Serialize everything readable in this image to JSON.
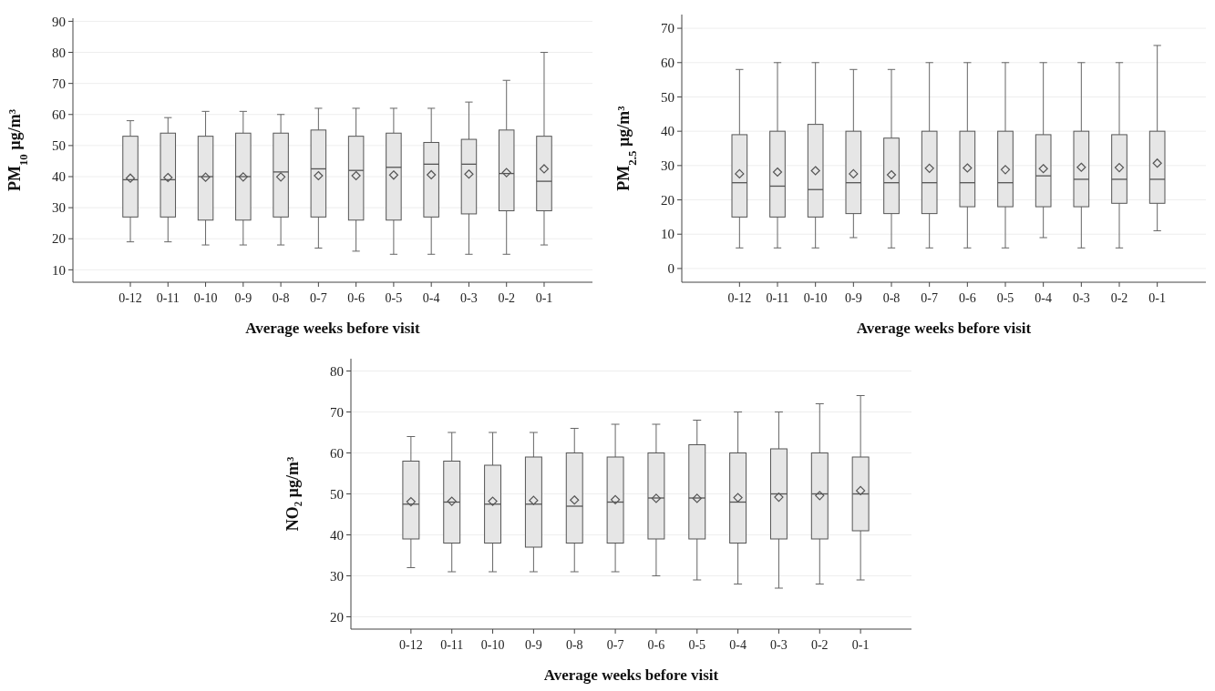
{
  "chart_data": [
    {
      "type": "box",
      "ylabel": "PM$_{10}$ µg/m³",
      "xlabel": "Average weeks before visit",
      "color": "#e6e6e6",
      "marker": "diamond",
      "grid": "y",
      "ylim": [
        6,
        91
      ],
      "yticks": [
        10,
        20,
        30,
        40,
        50,
        60,
        70,
        80,
        90
      ],
      "categories": [
        "0-12",
        "0-11",
        "0-10",
        "0-9",
        "0-8",
        "0-7",
        "0-6",
        "0-5",
        "0-4",
        "0-3",
        "0-2",
        "0-1"
      ],
      "boxes": [
        {
          "low": 19,
          "q1": 27,
          "median": 39,
          "q3": 53,
          "high": 58,
          "mean": 39.5
        },
        {
          "low": 19,
          "q1": 27,
          "median": 39,
          "q3": 54,
          "high": 59,
          "mean": 39.7
        },
        {
          "low": 18,
          "q1": 26,
          "median": 40,
          "q3": 53,
          "high": 61,
          "mean": 39.8
        },
        {
          "low": 18,
          "q1": 26,
          "median": 40,
          "q3": 54,
          "high": 61,
          "mean": 39.9
        },
        {
          "low": 18,
          "q1": 27,
          "median": 41.5,
          "q3": 54,
          "high": 60,
          "mean": 39.9
        },
        {
          "low": 17,
          "q1": 27,
          "median": 42.5,
          "q3": 55,
          "high": 62,
          "mean": 40.3
        },
        {
          "low": 16,
          "q1": 26,
          "median": 42,
          "q3": 53,
          "high": 62,
          "mean": 40.3
        },
        {
          "low": 15,
          "q1": 26,
          "median": 43,
          "q3": 54,
          "high": 62,
          "mean": 40.5
        },
        {
          "low": 15,
          "q1": 27,
          "median": 44,
          "q3": 51,
          "high": 62,
          "mean": 40.6
        },
        {
          "low": 15,
          "q1": 28,
          "median": 44,
          "q3": 52,
          "high": 64,
          "mean": 40.8
        },
        {
          "low": 15,
          "q1": 29,
          "median": 41,
          "q3": 55,
          "high": 71,
          "mean": 41.3
        },
        {
          "low": 18,
          "q1": 29,
          "median": 38.5,
          "q3": 53,
          "high": 80,
          "mean": 42.5
        }
      ]
    },
    {
      "type": "box",
      "ylabel": "PM$_{2.5}$ µg/m³",
      "xlabel": "Average weeks before visit",
      "color": "#e6e6e6",
      "marker": "diamond",
      "grid": "y",
      "ylim": [
        -4,
        74
      ],
      "yticks": [
        0,
        10,
        20,
        30,
        40,
        50,
        60,
        70
      ],
      "categories": [
        "0-12",
        "0-11",
        "0-10",
        "0-9",
        "0-8",
        "0-7",
        "0-6",
        "0-5",
        "0-4",
        "0-3",
        "0-2",
        "0-1"
      ],
      "boxes": [
        {
          "low": 6,
          "q1": 15,
          "median": 25,
          "q3": 39,
          "high": 58,
          "mean": 27.6
        },
        {
          "low": 6,
          "q1": 15,
          "median": 24,
          "q3": 40,
          "high": 60,
          "mean": 28.1
        },
        {
          "low": 6,
          "q1": 15,
          "median": 23,
          "q3": 42,
          "high": 60,
          "mean": 28.5
        },
        {
          "low": 9,
          "q1": 16,
          "median": 25,
          "q3": 40,
          "high": 58,
          "mean": 27.6
        },
        {
          "low": 6,
          "q1": 16,
          "median": 25,
          "q3": 38,
          "high": 58,
          "mean": 27.3
        },
        {
          "low": 6,
          "q1": 16,
          "median": 25,
          "q3": 40,
          "high": 60,
          "mean": 29.2
        },
        {
          "low": 6,
          "q1": 18,
          "median": 25,
          "q3": 40,
          "high": 60,
          "mean": 29.3
        },
        {
          "low": 6,
          "q1": 18,
          "median": 25,
          "q3": 40,
          "high": 60,
          "mean": 28.8
        },
        {
          "low": 9,
          "q1": 18,
          "median": 27,
          "q3": 39,
          "high": 60,
          "mean": 29.1
        },
        {
          "low": 6,
          "q1": 18,
          "median": 26,
          "q3": 40,
          "high": 60,
          "mean": 29.5
        },
        {
          "low": 6,
          "q1": 19,
          "median": 26,
          "q3": 39,
          "high": 60,
          "mean": 29.4
        },
        {
          "low": 11,
          "q1": 19,
          "median": 26,
          "q3": 40,
          "high": 65,
          "mean": 30.7
        }
      ]
    },
    {
      "type": "box",
      "ylabel": "NO₂ µg/m³",
      "xlabel": "Average weeks before visit",
      "color": "#e6e6e6",
      "marker": "diamond",
      "grid": "y",
      "ylim": [
        17,
        83
      ],
      "yticks": [
        20,
        30,
        40,
        50,
        60,
        70,
        80
      ],
      "categories": [
        "0-12",
        "0-11",
        "0-10",
        "0-9",
        "0-8",
        "0-7",
        "0-6",
        "0-5",
        "0-4",
        "0-3",
        "0-2",
        "0-1"
      ],
      "boxes": [
        {
          "low": 32,
          "q1": 39,
          "median": 47.5,
          "q3": 58,
          "high": 64,
          "mean": 48.1
        },
        {
          "low": 31,
          "q1": 38,
          "median": 48,
          "q3": 58,
          "high": 65,
          "mean": 48.2
        },
        {
          "low": 31,
          "q1": 38,
          "median": 47.5,
          "q3": 57,
          "high": 65,
          "mean": 48.2
        },
        {
          "low": 31,
          "q1": 37,
          "median": 47.5,
          "q3": 59,
          "high": 65,
          "mean": 48.4
        },
        {
          "low": 31,
          "q1": 38,
          "median": 47,
          "q3": 60,
          "high": 66,
          "mean": 48.5
        },
        {
          "low": 31,
          "q1": 38,
          "median": 48,
          "q3": 59,
          "high": 67,
          "mean": 48.6
        },
        {
          "low": 30,
          "q1": 39,
          "median": 49,
          "q3": 60,
          "high": 67,
          "mean": 48.9
        },
        {
          "low": 29,
          "q1": 39,
          "median": 49,
          "q3": 62,
          "high": 68,
          "mean": 48.9
        },
        {
          "low": 28,
          "q1": 38,
          "median": 48,
          "q3": 60,
          "high": 70,
          "mean": 49.1
        },
        {
          "low": 27,
          "q1": 39,
          "median": 50,
          "q3": 61,
          "high": 70,
          "mean": 49.2
        },
        {
          "low": 28,
          "q1": 39,
          "median": 50,
          "q3": 60,
          "high": 72,
          "mean": 49.6
        },
        {
          "low": 29,
          "q1": 41,
          "median": 50,
          "q3": 59,
          "high": 74,
          "mean": 50.8
        }
      ]
    }
  ]
}
